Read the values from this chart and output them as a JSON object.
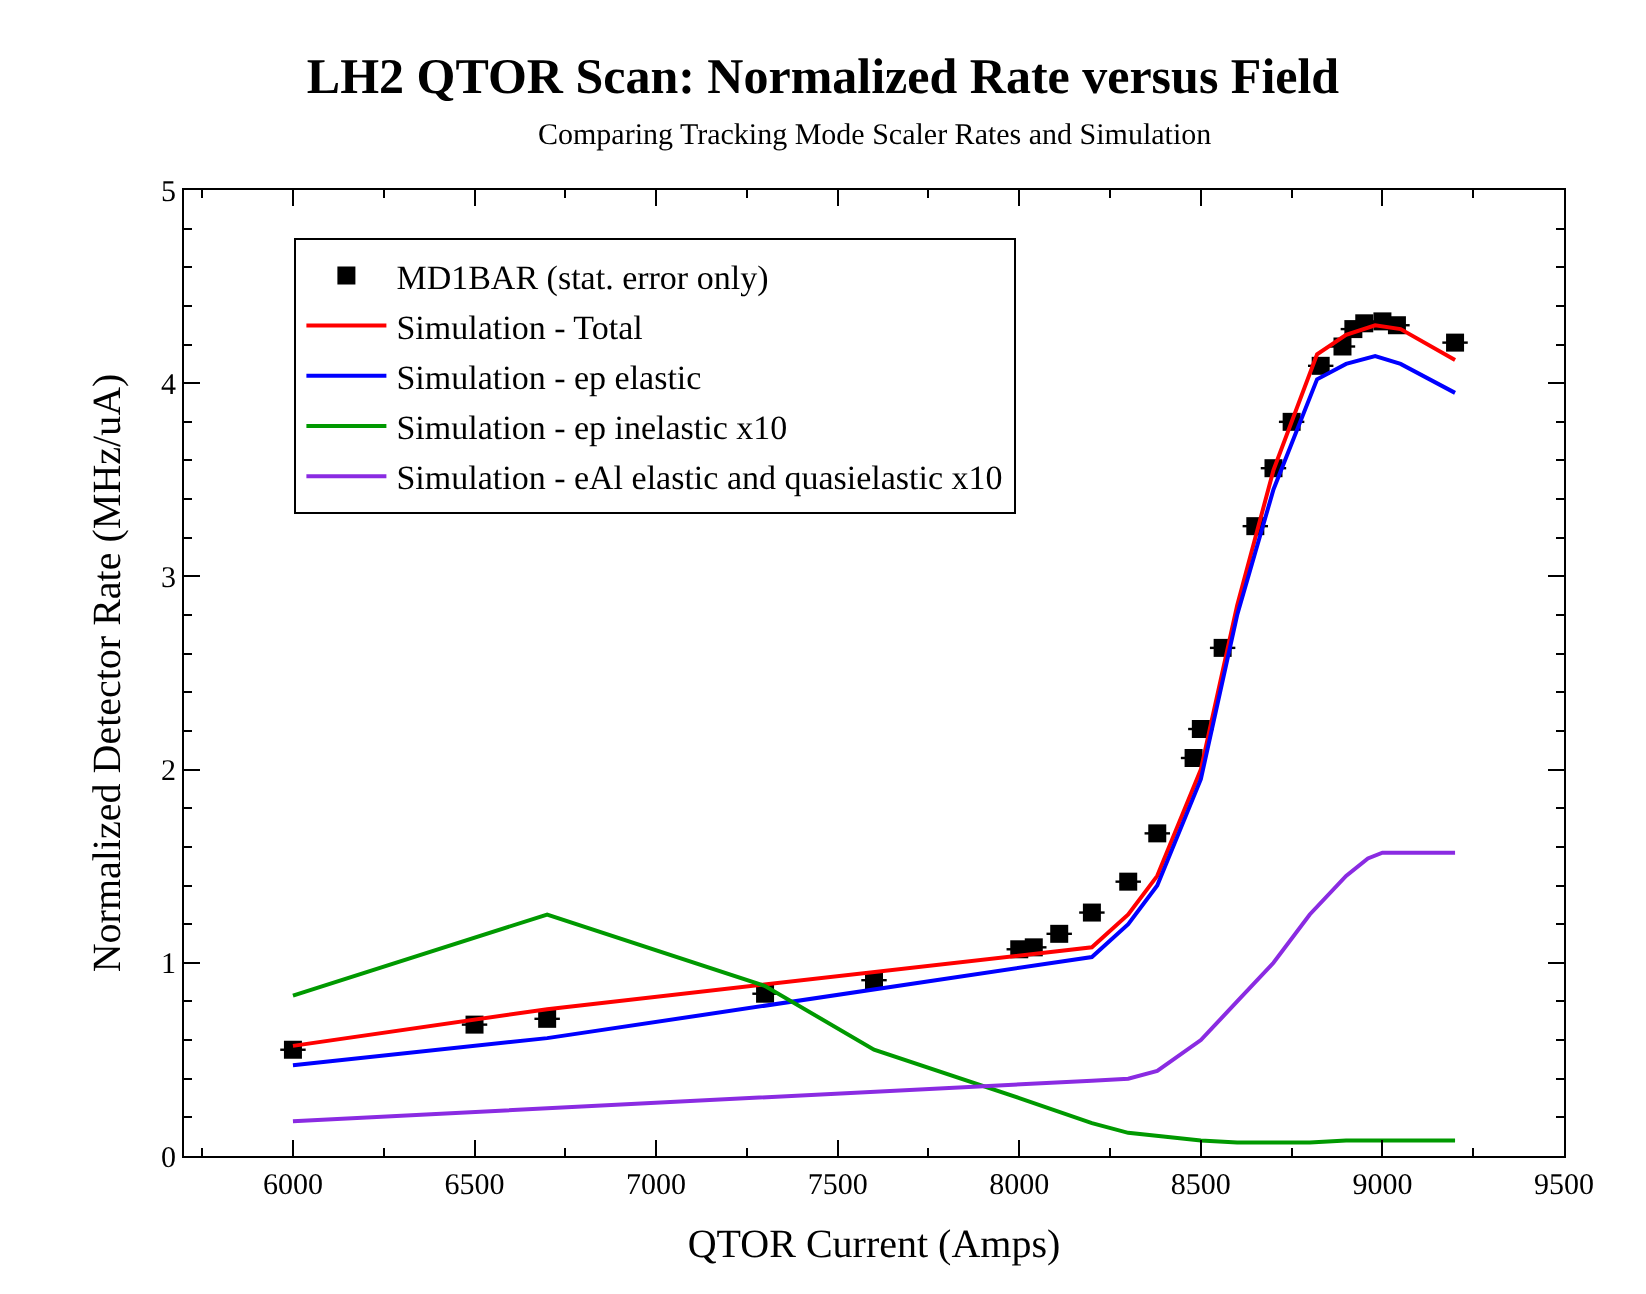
{
  "chart_data": {
    "type": "line",
    "title": "LH2 QTOR Scan: Normalized Rate versus Field",
    "subtitle": "Comparing Tracking Mode Scaler Rates and Simulation",
    "xlabel": "QTOR Current (Amps)",
    "ylabel": "Normalized Detector Rate (MHz/uA)",
    "xlim": [
      5700,
      9500
    ],
    "xticks": [
      6000,
      6500,
      7000,
      7500,
      8000,
      8500,
      9000,
      9500
    ],
    "ylim": [
      0,
      5
    ],
    "yticks": [
      0,
      1,
      2,
      3,
      4,
      5
    ],
    "grid": false,
    "legend": "top left",
    "line_style": "solid",
    "marker": "none",
    "series": [
      {
        "name": "MD1BAR (stat. error only)",
        "type": "scatter",
        "marker": "square",
        "color": "#000000",
        "x": [
          6000,
          6500,
          6700,
          7300,
          7600,
          8000,
          8040,
          8110,
          8200,
          8300,
          8380,
          8480,
          8500,
          8560,
          8650,
          8700,
          8750,
          8830,
          8890,
          8920,
          8950,
          9000,
          9040,
          9200
        ],
        "values": [
          0.55,
          0.68,
          0.71,
          0.84,
          0.91,
          1.07,
          1.08,
          1.15,
          1.26,
          1.42,
          1.67,
          2.06,
          2.21,
          2.63,
          3.26,
          3.56,
          3.8,
          4.09,
          4.19,
          4.28,
          4.31,
          4.32,
          4.3,
          4.21
        ],
        "xerrors": [
          35,
          35,
          35,
          35,
          35,
          35,
          35,
          35,
          35,
          35,
          35,
          35,
          35,
          35,
          35,
          35,
          35,
          35,
          35,
          35,
          35,
          35,
          35,
          35
        ]
      },
      {
        "name": "Simulation - Total",
        "color": "#ff0000",
        "x": [
          6000,
          6700,
          8200,
          8300,
          8380,
          8500,
          8600,
          8700,
          8820,
          8900,
          8980,
          9050,
          9200
        ],
        "values": [
          0.57,
          0.76,
          1.08,
          1.25,
          1.45,
          2.0,
          2.85,
          3.55,
          4.15,
          4.25,
          4.3,
          4.28,
          4.12
        ]
      },
      {
        "name": "Simulation - ep elastic",
        "color": "#0000ff",
        "x": [
          6000,
          6700,
          8200,
          8300,
          8380,
          8500,
          8600,
          8700,
          8820,
          8900,
          8980,
          9050,
          9200
        ],
        "values": [
          0.47,
          0.61,
          1.03,
          1.2,
          1.4,
          1.95,
          2.8,
          3.45,
          4.02,
          4.1,
          4.14,
          4.1,
          3.95
        ]
      },
      {
        "name": "Simulation - ep inelastic x10",
        "color": "#009900",
        "x": [
          6000,
          6700,
          7300,
          7600,
          8000,
          8200,
          8300,
          8500,
          8600,
          8800,
          8900,
          9200
        ],
        "values": [
          0.83,
          1.25,
          0.88,
          0.55,
          0.3,
          0.17,
          0.12,
          0.08,
          0.07,
          0.07,
          0.08,
          0.08
        ]
      },
      {
        "name": "Simulation - eAl elastic and quasielastic x10",
        "color": "#8a2be2",
        "x": [
          6000,
          8200,
          8300,
          8380,
          8500,
          8600,
          8700,
          8800,
          8900,
          8960,
          9000,
          9200
        ],
        "values": [
          0.18,
          0.39,
          0.4,
          0.44,
          0.6,
          0.8,
          1.0,
          1.25,
          1.45,
          1.54,
          1.57,
          1.57
        ]
      }
    ]
  }
}
